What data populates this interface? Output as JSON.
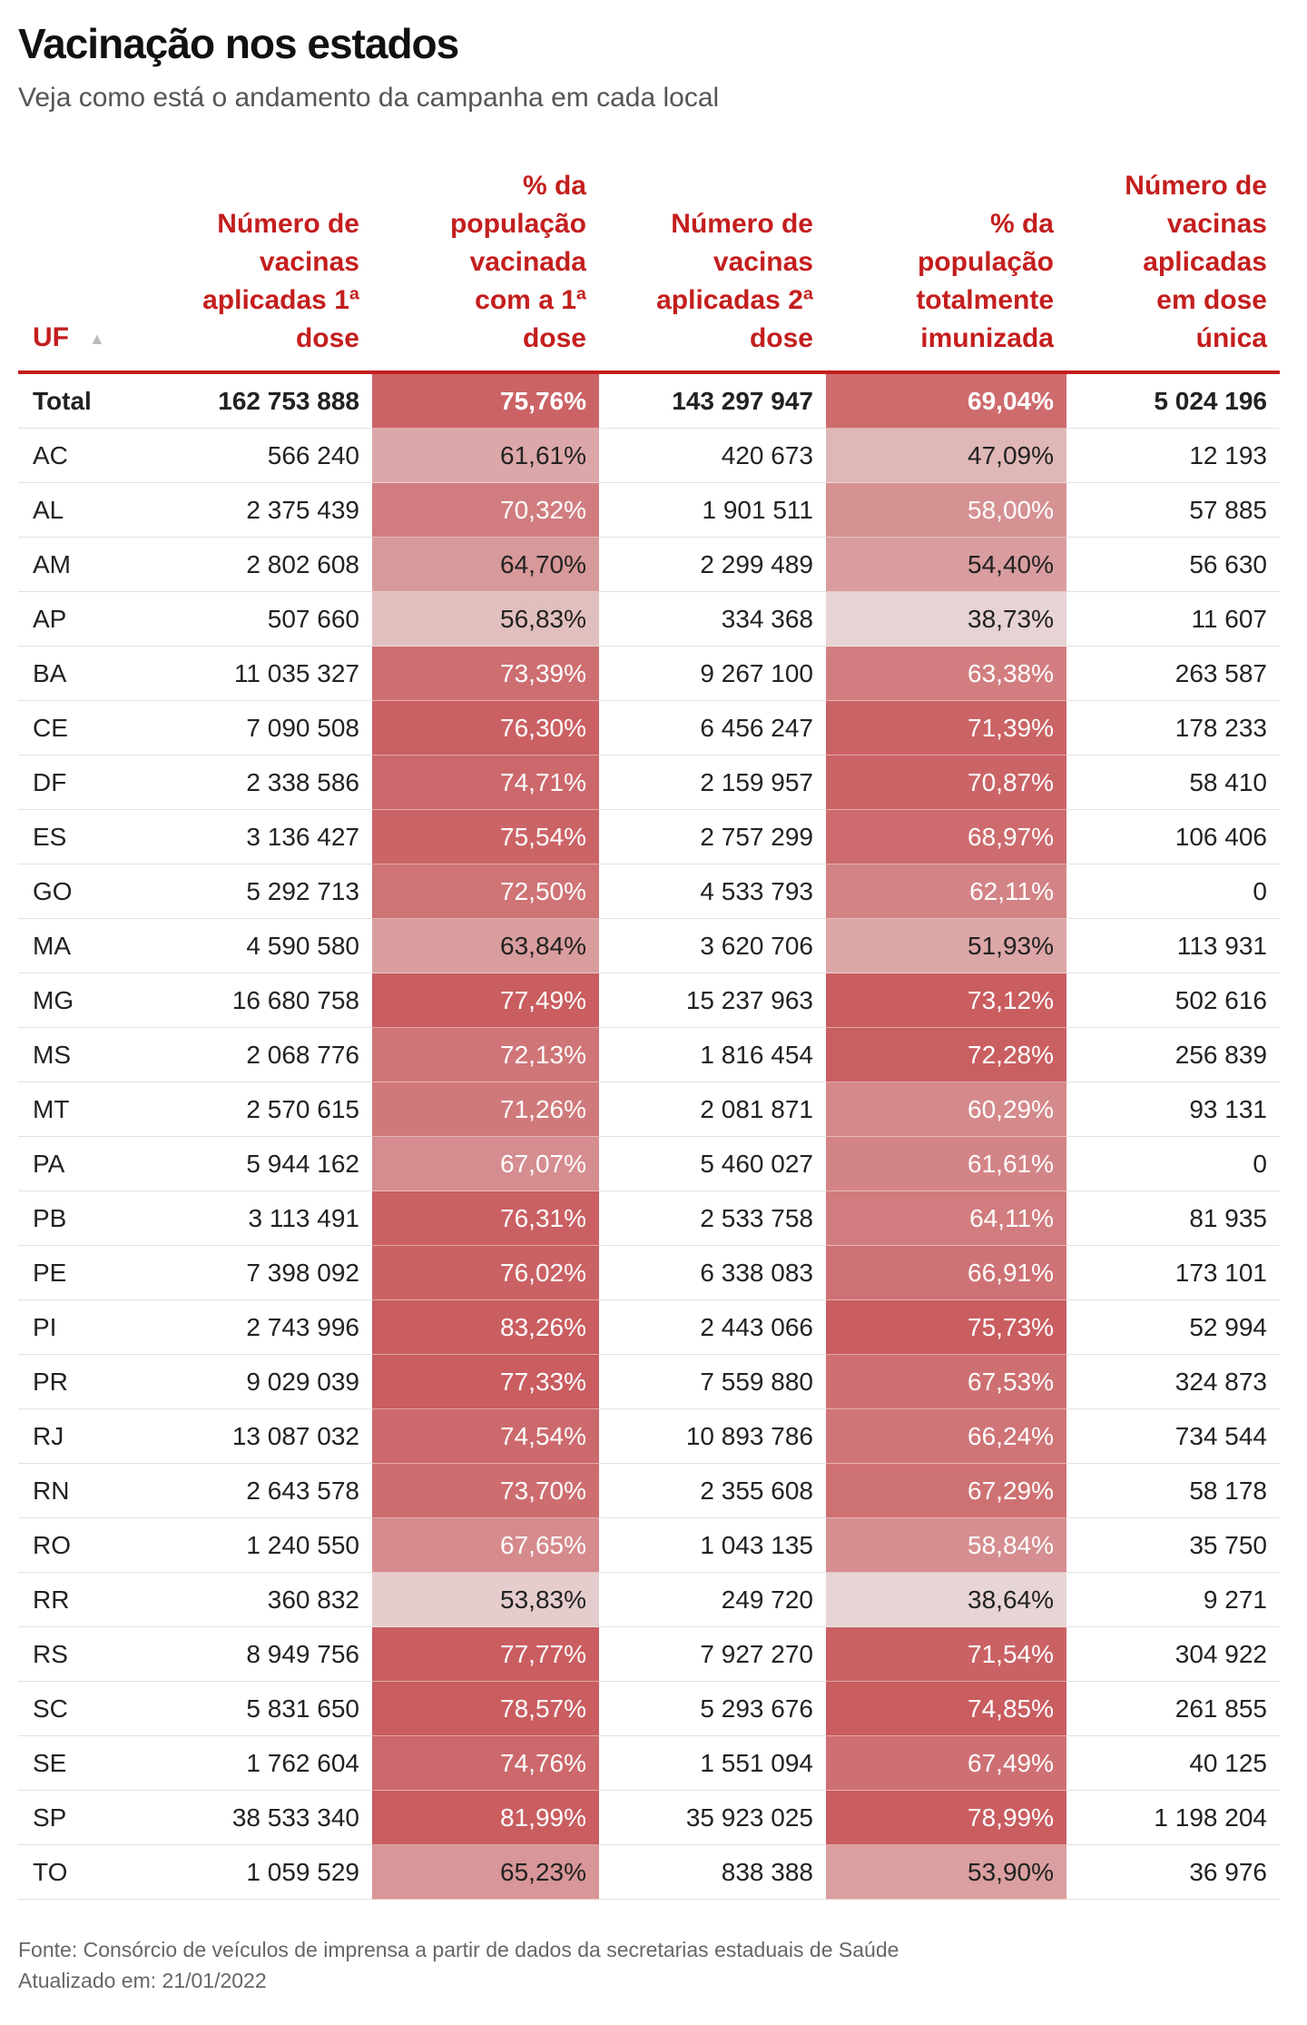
{
  "title": "Vacinação nos estados",
  "subtitle": "Veja como está o andamento da campanha em cada local",
  "columns": {
    "uf": "UF",
    "dose1": [
      "Número de",
      "vacinas",
      "aplicadas 1ª",
      "dose"
    ],
    "pct1": [
      "% da",
      "população",
      "vacinada",
      "com a 1ª",
      "dose"
    ],
    "dose2": [
      "Número de",
      "vacinas",
      "aplicadas 2ª",
      "dose"
    ],
    "pct2": [
      "% da",
      "população",
      "totalmente",
      "imunizada"
    ],
    "single": [
      "Número de",
      "vacinas",
      "aplicadas",
      "em dose",
      "única"
    ]
  },
  "sort_icon": "sort-ascending-icon",
  "total": {
    "uf": "Total",
    "dose1": "162 753 888",
    "pct1": "75,76%",
    "pct1_value": 75.76,
    "dose2": "143 297 947",
    "pct2": "69,04%",
    "pct2_value": 69.04,
    "single": "5 024 196"
  },
  "rows": [
    {
      "uf": "AC",
      "dose1": "566 240",
      "pct1": "61,61%",
      "pct1_value": 61.61,
      "dose2": "420 673",
      "pct2": "47,09%",
      "pct2_value": 47.09,
      "single": "12 193"
    },
    {
      "uf": "AL",
      "dose1": "2 375 439",
      "pct1": "70,32%",
      "pct1_value": 70.32,
      "dose2": "1 901 511",
      "pct2": "58,00%",
      "pct2_value": 58.0,
      "single": "57 885"
    },
    {
      "uf": "AM",
      "dose1": "2 802 608",
      "pct1": "64,70%",
      "pct1_value": 64.7,
      "dose2": "2 299 489",
      "pct2": "54,40%",
      "pct2_value": 54.4,
      "single": "56 630"
    },
    {
      "uf": "AP",
      "dose1": "507 660",
      "pct1": "56,83%",
      "pct1_value": 56.83,
      "dose2": "334 368",
      "pct2": "38,73%",
      "pct2_value": 38.73,
      "single": "11 607"
    },
    {
      "uf": "BA",
      "dose1": "11 035 327",
      "pct1": "73,39%",
      "pct1_value": 73.39,
      "dose2": "9 267 100",
      "pct2": "63,38%",
      "pct2_value": 63.38,
      "single": "263 587"
    },
    {
      "uf": "CE",
      "dose1": "7 090 508",
      "pct1": "76,30%",
      "pct1_value": 76.3,
      "dose2": "6 456 247",
      "pct2": "71,39%",
      "pct2_value": 71.39,
      "single": "178 233"
    },
    {
      "uf": "DF",
      "dose1": "2 338 586",
      "pct1": "74,71%",
      "pct1_value": 74.71,
      "dose2": "2 159 957",
      "pct2": "70,87%",
      "pct2_value": 70.87,
      "single": "58 410"
    },
    {
      "uf": "ES",
      "dose1": "3 136 427",
      "pct1": "75,54%",
      "pct1_value": 75.54,
      "dose2": "2 757 299",
      "pct2": "68,97%",
      "pct2_value": 68.97,
      "single": "106 406"
    },
    {
      "uf": "GO",
      "dose1": "5 292 713",
      "pct1": "72,50%",
      "pct1_value": 72.5,
      "dose2": "4 533 793",
      "pct2": "62,11%",
      "pct2_value": 62.11,
      "single": "0"
    },
    {
      "uf": "MA",
      "dose1": "4 590 580",
      "pct1": "63,84%",
      "pct1_value": 63.84,
      "dose2": "3 620 706",
      "pct2": "51,93%",
      "pct2_value": 51.93,
      "single": "113 931"
    },
    {
      "uf": "MG",
      "dose1": "16 680 758",
      "pct1": "77,49%",
      "pct1_value": 77.49,
      "dose2": "15 237 963",
      "pct2": "73,12%",
      "pct2_value": 73.12,
      "single": "502 616"
    },
    {
      "uf": "MS",
      "dose1": "2 068 776",
      "pct1": "72,13%",
      "pct1_value": 72.13,
      "dose2": "1 816 454",
      "pct2": "72,28%",
      "pct2_value": 72.28,
      "single": "256 839"
    },
    {
      "uf": "MT",
      "dose1": "2 570 615",
      "pct1": "71,26%",
      "pct1_value": 71.26,
      "dose2": "2 081 871",
      "pct2": "60,29%",
      "pct2_value": 60.29,
      "single": "93 131"
    },
    {
      "uf": "PA",
      "dose1": "5 944 162",
      "pct1": "67,07%",
      "pct1_value": 67.07,
      "dose2": "5 460 027",
      "pct2": "61,61%",
      "pct2_value": 61.61,
      "single": "0"
    },
    {
      "uf": "PB",
      "dose1": "3 113 491",
      "pct1": "76,31%",
      "pct1_value": 76.31,
      "dose2": "2 533 758",
      "pct2": "64,11%",
      "pct2_value": 64.11,
      "single": "81 935"
    },
    {
      "uf": "PE",
      "dose1": "7 398 092",
      "pct1": "76,02%",
      "pct1_value": 76.02,
      "dose2": "6 338 083",
      "pct2": "66,91%",
      "pct2_value": 66.91,
      "single": "173 101"
    },
    {
      "uf": "PI",
      "dose1": "2 743 996",
      "pct1": "83,26%",
      "pct1_value": 83.26,
      "dose2": "2 443 066",
      "pct2": "75,73%",
      "pct2_value": 75.73,
      "single": "52 994"
    },
    {
      "uf": "PR",
      "dose1": "9 029 039",
      "pct1": "77,33%",
      "pct1_value": 77.33,
      "dose2": "7 559 880",
      "pct2": "67,53%",
      "pct2_value": 67.53,
      "single": "324 873"
    },
    {
      "uf": "RJ",
      "dose1": "13 087 032",
      "pct1": "74,54%",
      "pct1_value": 74.54,
      "dose2": "10 893 786",
      "pct2": "66,24%",
      "pct2_value": 66.24,
      "single": "734 544"
    },
    {
      "uf": "RN",
      "dose1": "2 643 578",
      "pct1": "73,70%",
      "pct1_value": 73.7,
      "dose2": "2 355 608",
      "pct2": "67,29%",
      "pct2_value": 67.29,
      "single": "58 178"
    },
    {
      "uf": "RO",
      "dose1": "1 240 550",
      "pct1": "67,65%",
      "pct1_value": 67.65,
      "dose2": "1 043 135",
      "pct2": "58,84%",
      "pct2_value": 58.84,
      "single": "35 750"
    },
    {
      "uf": "RR",
      "dose1": "360 832",
      "pct1": "53,83%",
      "pct1_value": 53.83,
      "dose2": "249 720",
      "pct2": "38,64%",
      "pct2_value": 38.64,
      "single": "9 271"
    },
    {
      "uf": "RS",
      "dose1": "8 949 756",
      "pct1": "77,77%",
      "pct1_value": 77.77,
      "dose2": "7 927 270",
      "pct2": "71,54%",
      "pct2_value": 71.54,
      "single": "304 922"
    },
    {
      "uf": "SC",
      "dose1": "5 831 650",
      "pct1": "78,57%",
      "pct1_value": 78.57,
      "dose2": "5 293 676",
      "pct2": "74,85%",
      "pct2_value": 74.85,
      "single": "261 855"
    },
    {
      "uf": "SE",
      "dose1": "1 762 604",
      "pct1": "74,76%",
      "pct1_value": 74.76,
      "dose2": "1 551 094",
      "pct2": "67,49%",
      "pct2_value": 67.49,
      "single": "40 125"
    },
    {
      "uf": "SP",
      "dose1": "38 533 340",
      "pct1": "81,99%",
      "pct1_value": 81.99,
      "dose2": "35 923 025",
      "pct2": "78,99%",
      "pct2_value": 78.99,
      "single": "1 198 204"
    },
    {
      "uf": "TO",
      "dose1": "1 059 529",
      "pct1": "65,23%",
      "pct1_value": 65.23,
      "dose2": "838 388",
      "pct2": "53,90%",
      "pct2_value": 53.9,
      "single": "36 976"
    }
  ],
  "colors": {
    "accent": "#c41e1e",
    "heat_strong": "#c95d60",
    "heat_light": "#e8d6d6",
    "text_dark": "#222222",
    "text_light": "#ffffff"
  },
  "footer": {
    "source": "Fonte: Consórcio de veículos de imprensa a partir de dados da secretarias estaduais de Saúde",
    "updated": "Atualizado em: 21/01/2022"
  }
}
